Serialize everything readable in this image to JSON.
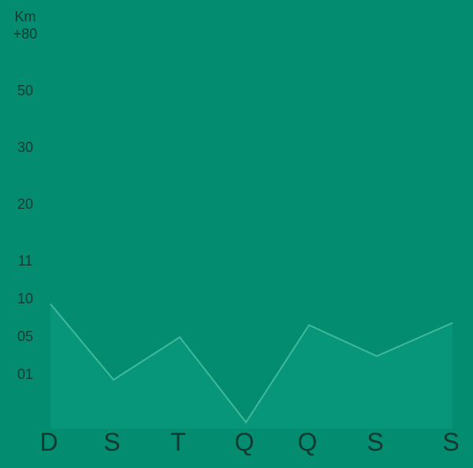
{
  "chart_data": {
    "type": "area",
    "unit_label": "Km",
    "categories": [
      "D",
      "S",
      "T",
      "Q",
      "Q",
      "S",
      "S"
    ],
    "values": [
      9.4,
      0.5,
      5.0,
      -4.0,
      6.6,
      3.0,
      6.9
    ],
    "ytick_labels": [
      "+80",
      "50",
      "30",
      "20",
      "11",
      "10",
      "05",
      "01"
    ],
    "ytick_values": [
      80,
      50,
      30,
      20,
      11,
      10,
      5,
      1
    ],
    "grid": false,
    "colors": {
      "background": "#048c70",
      "area_fill": "#07967a",
      "line": "#3fb99a",
      "text": "#123a31"
    }
  }
}
